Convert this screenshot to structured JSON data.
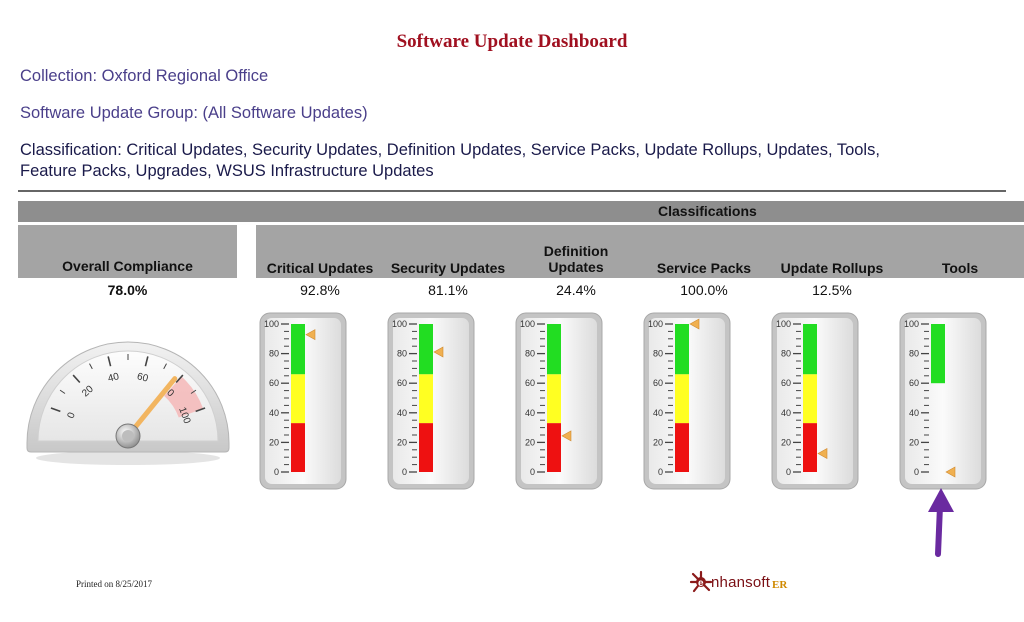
{
  "title": "Software Update Dashboard",
  "collection": "Collection: Oxford Regional Office",
  "update_group": "Software Update Group: (All Software Updates)",
  "classification_line1": "Classification: Critical Updates, Security Updates, Definition Updates, Service Packs, Update Rollups, Updates, Tools,",
  "classification_line2": "Feature Packs, Upgrades, WSUS Infrastructure Updates",
  "classifications_header": "Classifications",
  "overall": {
    "label": "Overall Compliance",
    "value_text": "78.0%",
    "value": 78.0,
    "ticks": [
      "0",
      "20",
      "40",
      "60",
      "80",
      "100"
    ]
  },
  "gauge_ticks": [
    "100",
    "80",
    "60",
    "40",
    "20",
    "0"
  ],
  "gauge_colors": {
    "green": "#22dd22",
    "yellow": "#ffff22",
    "red": "#ee1111",
    "marker": "#f0b050"
  },
  "columns": [
    {
      "label_line1": "Critical Updates",
      "label_line2": "",
      "value_text": "92.8%",
      "value": 92.8,
      "bands": true
    },
    {
      "label_line1": "Security Updates",
      "label_line2": "",
      "value_text": "81.1%",
      "value": 81.1,
      "bands": true
    },
    {
      "label_line1": "Definition",
      "label_line2": "Updates",
      "value_text": "24.4%",
      "value": 24.4,
      "bands": true
    },
    {
      "label_line1": "Service Packs",
      "label_line2": "",
      "value_text": "100.0%",
      "value": 100.0,
      "bands": true
    },
    {
      "label_line1": "Update Rollups",
      "label_line2": "",
      "value_text": "12.5%",
      "value": 12.5,
      "bands": true
    },
    {
      "label_line1": "Tools",
      "label_line2": "",
      "value_text": "",
      "value": 0,
      "bands": false
    }
  ],
  "footer": {
    "printed": "Printed on 8/25/2017",
    "brand": "nhansoft",
    "brand_initial": "e",
    "brand_suffix": "ER"
  }
}
